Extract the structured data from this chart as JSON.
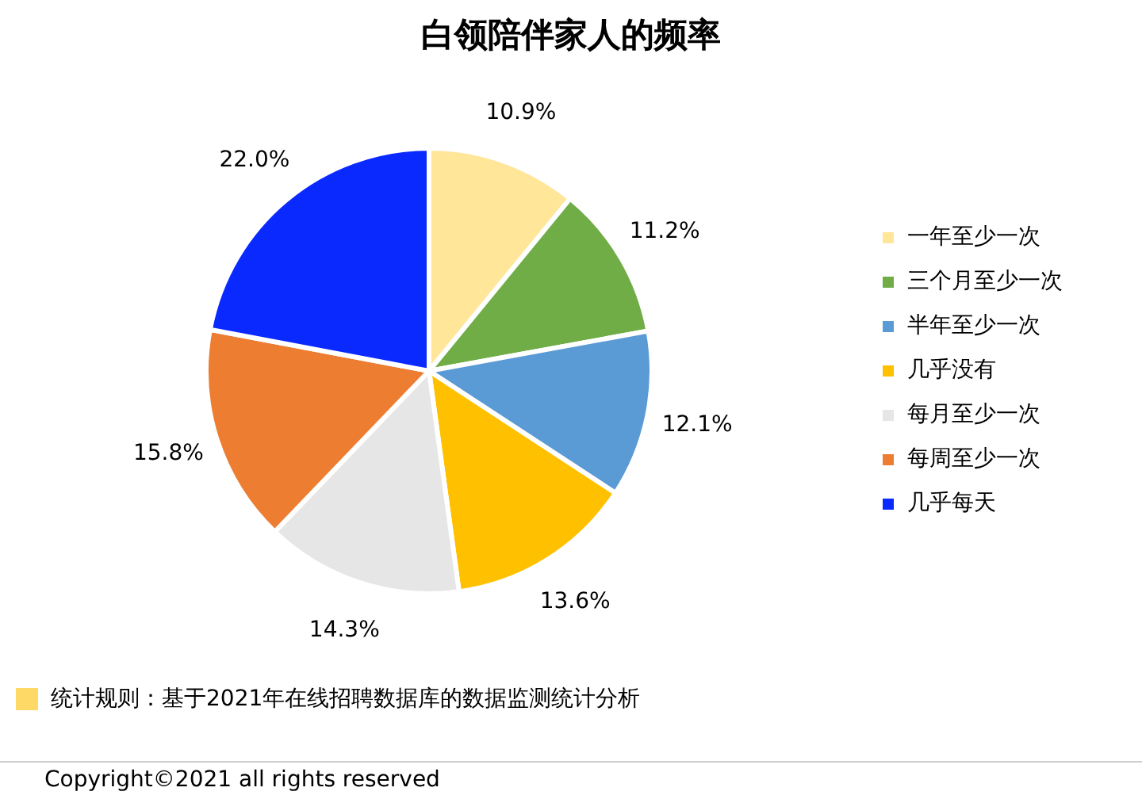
{
  "chart_data": {
    "type": "pie",
    "title": "白领陪伴家人的频率",
    "categories": [
      "一年至少一次",
      "三个月至少一次",
      "半年至少一次",
      "几乎没有",
      "每月至少一次",
      "每周至少一次",
      "几乎每天"
    ],
    "values": [
      10.9,
      11.2,
      12.1,
      13.6,
      14.3,
      15.8,
      22.0
    ],
    "value_labels": [
      "10.9%",
      "11.2%",
      "12.1%",
      "13.6%",
      "14.3%",
      "15.8%",
      "22.0%"
    ],
    "colors": [
      "#ffe699",
      "#70ad47",
      "#5b9bd5",
      "#ffc000",
      "#e7e6e6",
      "#ed7d31",
      "#0a29ff"
    ],
    "legend": "right",
    "annotations": [
      "统计规则：基于2021年在线招聘数据库的数据监测统计分析",
      "Copyright©2021 all rights reserved"
    ]
  }
}
